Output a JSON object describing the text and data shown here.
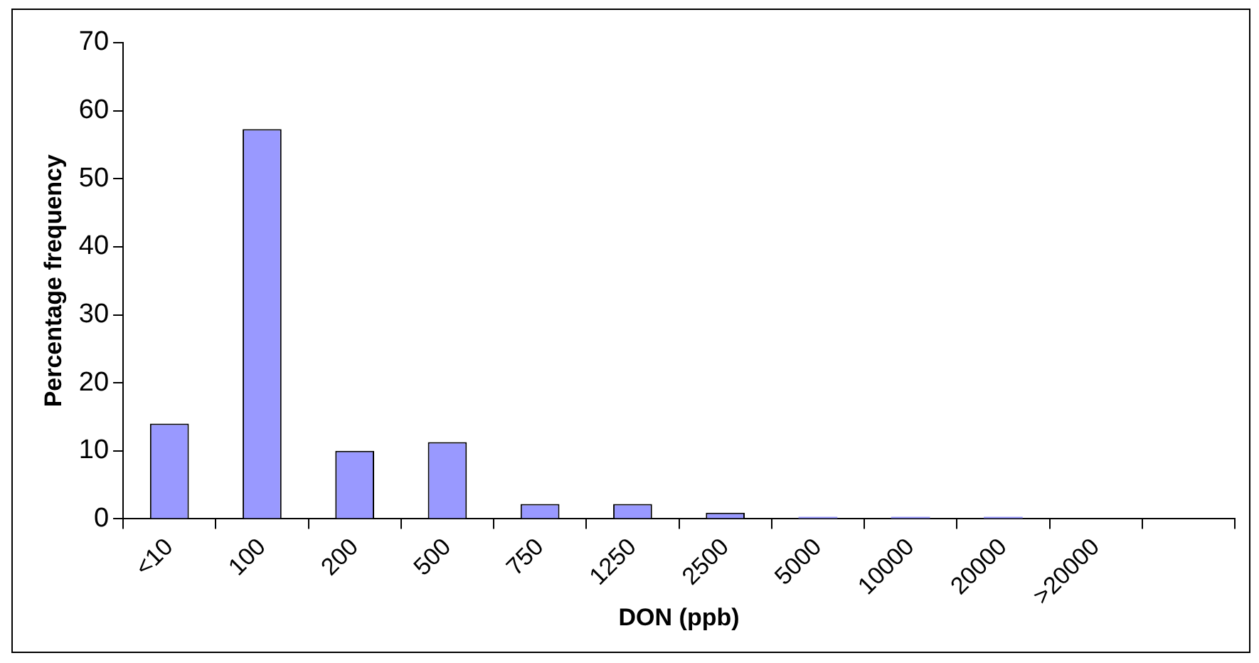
{
  "chart_data": {
    "type": "bar",
    "xlabel": "DON (ppb)",
    "ylabel": "Percentage frequency",
    "categories": [
      "<10",
      "100",
      "200",
      "500",
      "750",
      "1250",
      "2500",
      "5000",
      "10000",
      "20000",
      ">20000",
      null
    ],
    "values": [
      14,
      57.3,
      10,
      11.3,
      2.2,
      2.2,
      0.9,
      0.3,
      0.3,
      0.3,
      0,
      0
    ],
    "color": "#9999ff",
    "ylim": [
      0,
      70
    ],
    "yticks": [
      0,
      10,
      20,
      30,
      40,
      50,
      60,
      70
    ],
    "grid": false,
    "legend": false
  }
}
